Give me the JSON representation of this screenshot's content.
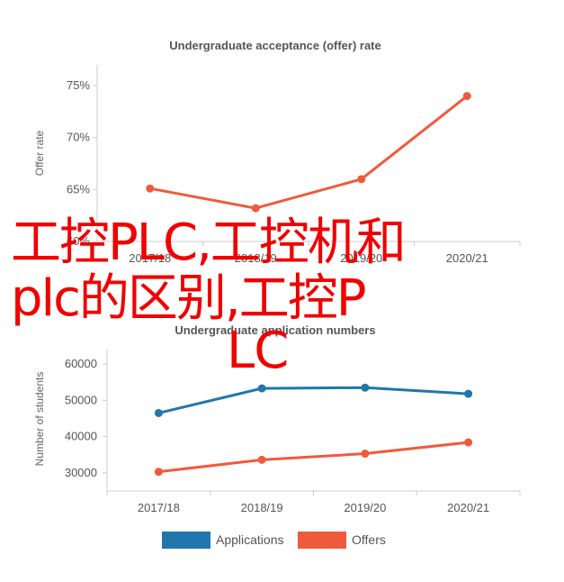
{
  "chart_data": [
    {
      "type": "line",
      "title": "Undergraduate acceptance (offer) rate",
      "ylabel": "Offer rate",
      "categories": [
        "2017/18",
        "2018/19",
        "2019/20",
        "2020/21"
      ],
      "y_tick_labels": [
        "60%",
        "65%",
        "70%",
        "75%"
      ],
      "ylim": [
        60,
        77
      ],
      "series": [
        {
          "values": [
            65.1,
            63.2,
            66.0,
            74.0
          ],
          "color": "#f05a3c"
        }
      ],
      "grid": false
    },
    {
      "type": "line",
      "title": "Undergraduate application numbers",
      "ylabel": "Number of students",
      "categories": [
        "2017/18",
        "2018/19",
        "2019/20",
        "2020/21"
      ],
      "y_tick_labels": [
        "30000",
        "40000",
        "50000",
        "60000"
      ],
      "ylim": [
        25000,
        64000
      ],
      "series": [
        {
          "name": "Applications",
          "values": [
            46500,
            53300,
            53500,
            51800
          ],
          "color": "#2176ae"
        },
        {
          "name": "Offers",
          "values": [
            30300,
            33600,
            35300,
            38400
          ],
          "color": "#f05a3c"
        }
      ],
      "legend": "bottom",
      "grid": false
    }
  ],
  "overlay_text": {
    "line1": "工控PLC,工控机和",
    "line2": "plc的区别,工控P",
    "line3": "LC"
  }
}
